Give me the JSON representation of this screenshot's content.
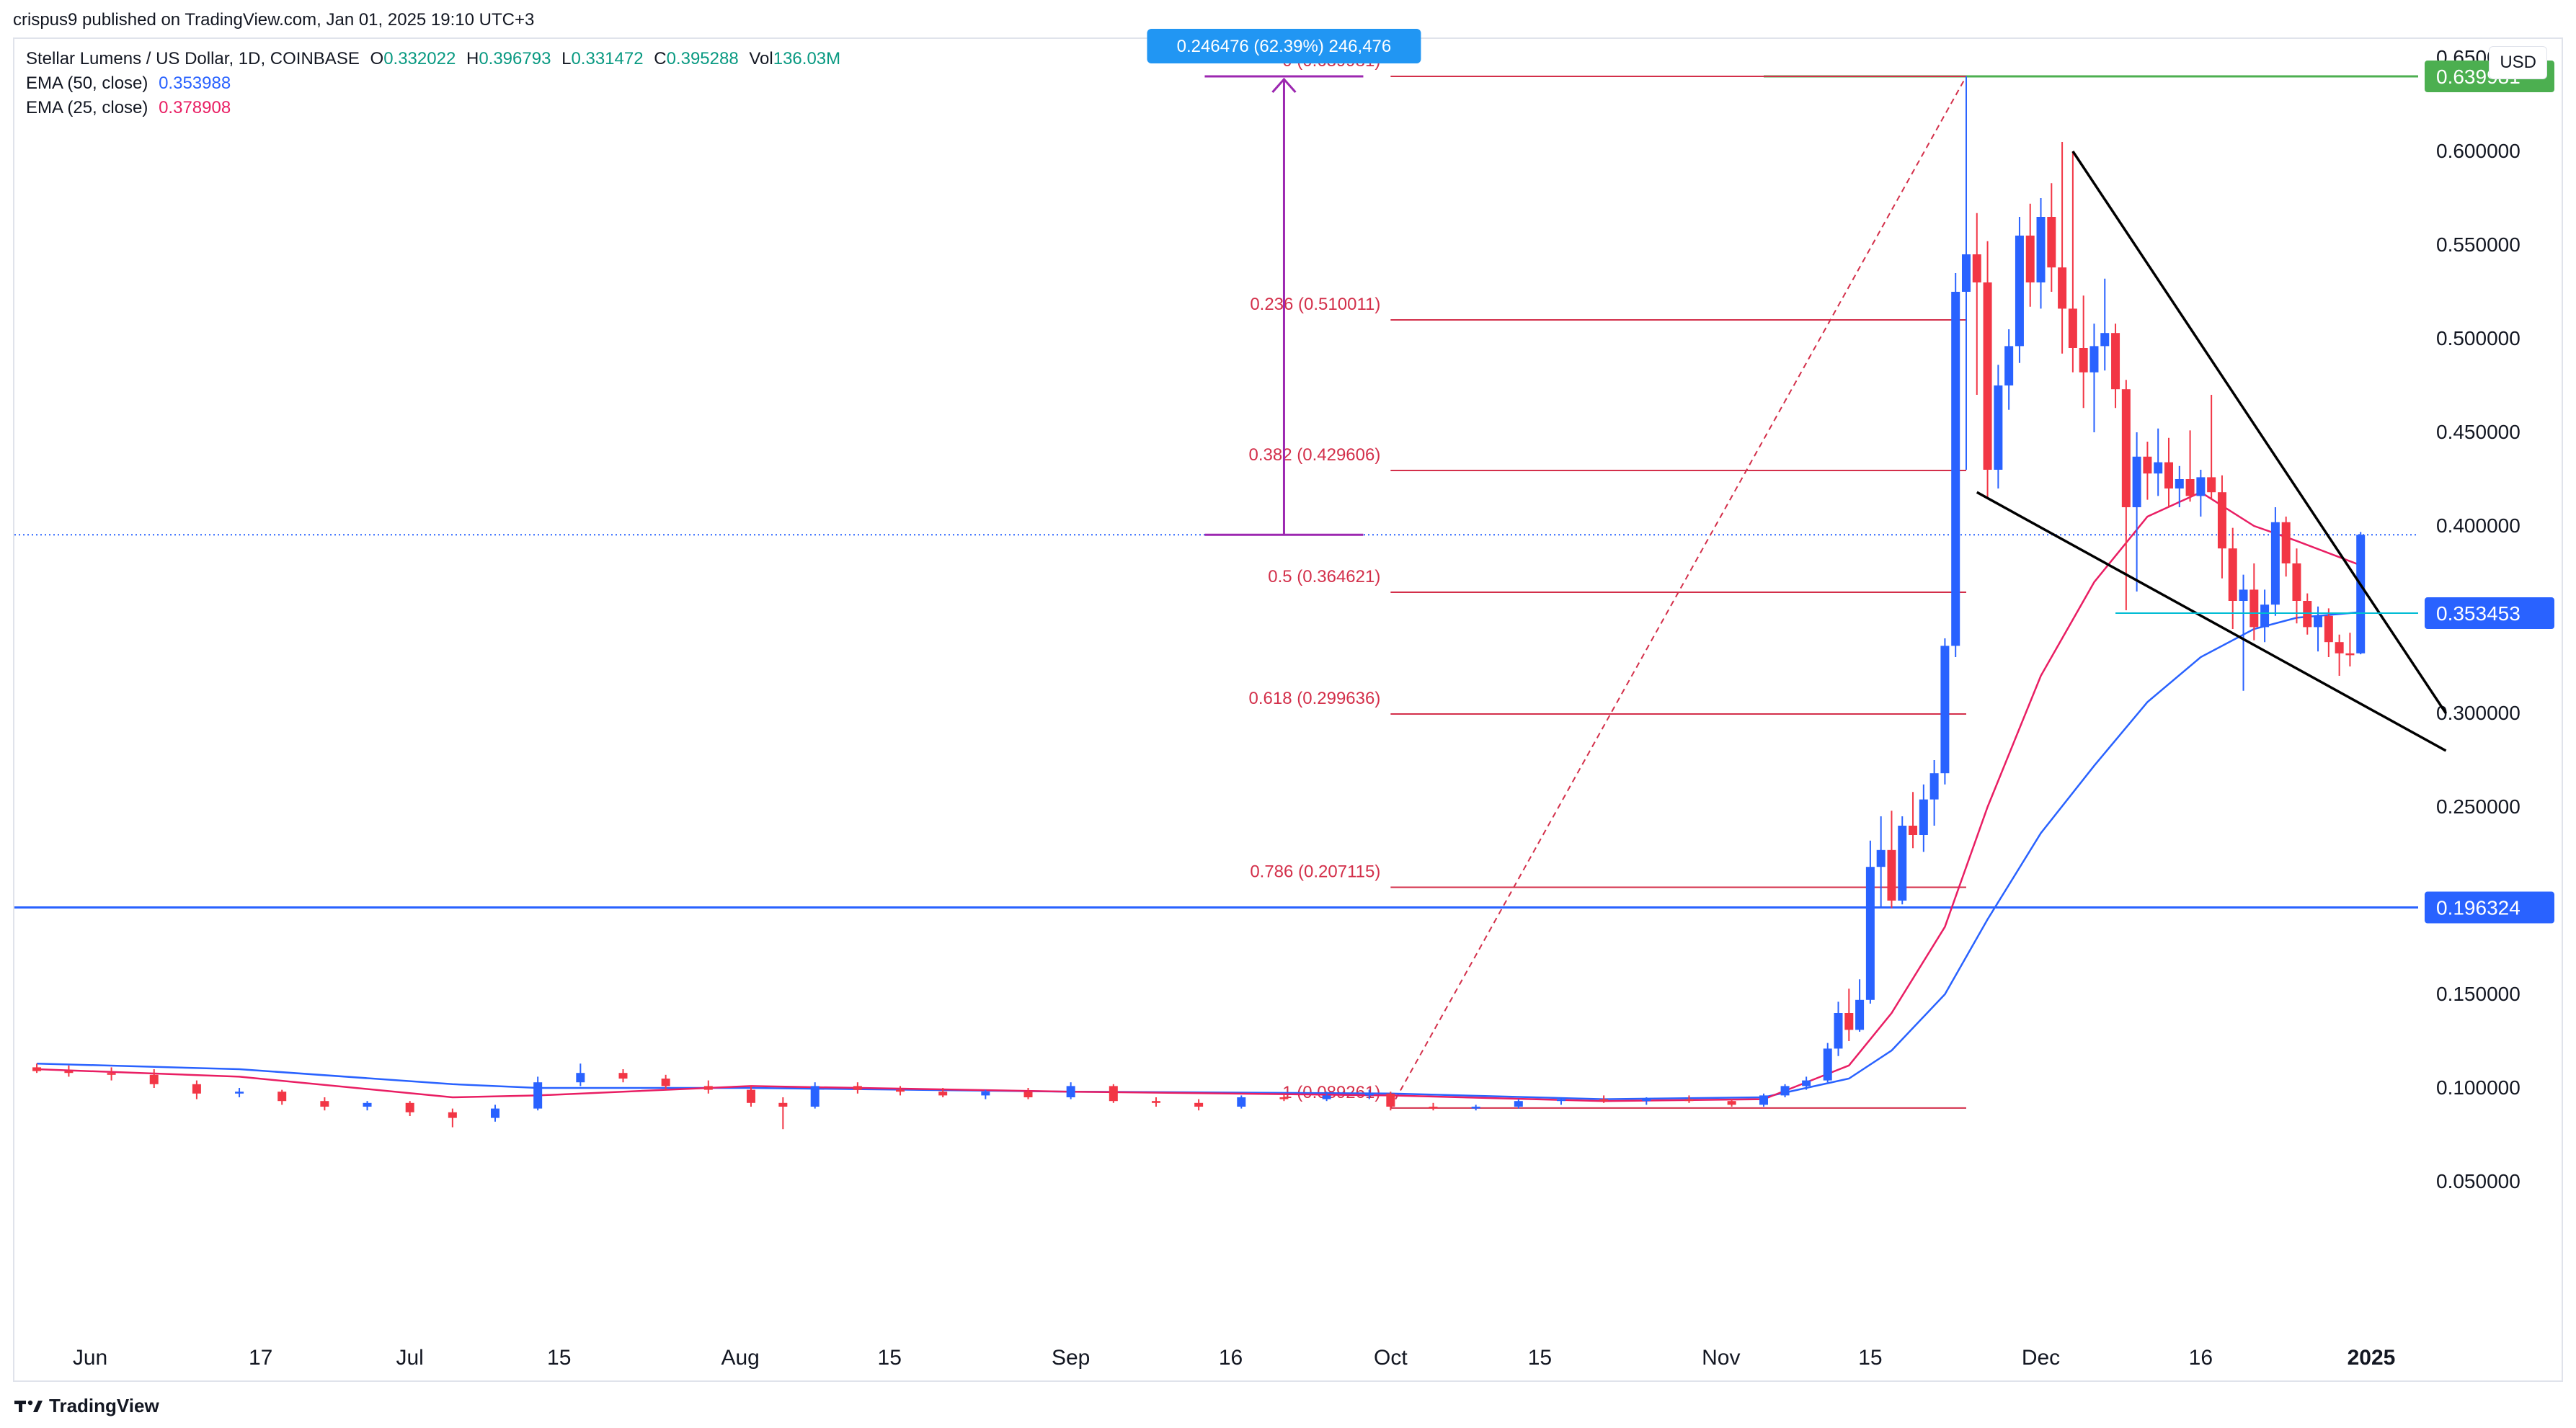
{
  "header": {
    "publisher": "crispus9 published on TradingView.com, Jan 01, 2025 19:10 UTC+3"
  },
  "symbol": {
    "name": "Stellar Lumens / US Dollar, 1D, COINBASE",
    "o_label": "O",
    "o": "0.332022",
    "h_label": "H",
    "h": "0.396793",
    "l_label": "L",
    "l": "0.331472",
    "c_label": "C",
    "c": "0.395288",
    "vol_label": "Vol",
    "vol": "136.03M"
  },
  "indicators": [
    {
      "label": "EMA (50, close)",
      "value": "0.353988",
      "color": "#2962ff"
    },
    {
      "label": "EMA (25, close)",
      "value": "0.378908",
      "color": "#e91e63"
    }
  ],
  "currency_button": "USD",
  "footer": {
    "brand": "TradingView"
  },
  "colors": {
    "up": "#2962ff",
    "down": "#f23645",
    "fib": "#d32f4a",
    "green": "#4caf50",
    "purple": "#9c27b0",
    "hline": "#2962ff",
    "wedge": "#000000"
  },
  "chart_data": {
    "type": "candlestick",
    "symbol": "XLMUSD",
    "interval": "1D",
    "ylim": [
      0.0,
      0.67
    ],
    "y_ticks": [
      "0.650000",
      "0.600000",
      "0.550000",
      "0.500000",
      "0.450000",
      "0.400000",
      "0.300000",
      "0.250000",
      "0.150000",
      "0.100000",
      "0.050000"
    ],
    "x_ticks": [
      "Jun",
      "17",
      "Jul",
      "15",
      "Aug",
      "15",
      "Sep",
      "16",
      "Oct",
      "15",
      "Nov",
      "15",
      "Dec",
      "16",
      "2025"
    ],
    "price_labels": [
      {
        "value": 0.639981,
        "text": "0.639981",
        "color": "#4caf50"
      },
      {
        "value": 0.353453,
        "text": "0.353453",
        "color": "#2962ff"
      },
      {
        "value": 0.196324,
        "text": "0.196324",
        "color": "#2962ff"
      }
    ],
    "fib_levels": [
      {
        "ratio": "1",
        "text": "1 (0.089261)",
        "value": 0.089261
      },
      {
        "ratio": "0.786",
        "text": "0.786 (0.207115)",
        "value": 0.207115
      },
      {
        "ratio": "0.618",
        "text": "0.618 (0.299636)",
        "value": 0.299636
      },
      {
        "ratio": "0.5",
        "text": "0.5 (0.364621)",
        "value": 0.364621
      },
      {
        "ratio": "0.382",
        "text": "0.382 (0.429606)",
        "value": 0.429606
      },
      {
        "ratio": "0.236",
        "text": "0.236 (0.510011)",
        "value": 0.510011
      },
      {
        "ratio": "0",
        "text": "0 (0.639981)",
        "value": 0.639981
      }
    ],
    "measure_label": "0.246476 (62.39%) 246,476",
    "current_price": 0.395288,
    "candles": [
      {
        "date": "2024-05-27",
        "o": 0.111,
        "h": 0.113,
        "l": 0.108,
        "c": 0.109
      },
      {
        "date": "2024-05-30",
        "o": 0.109,
        "h": 0.112,
        "l": 0.106,
        "c": 0.108
      },
      {
        "date": "2024-06-03",
        "o": 0.108,
        "h": 0.111,
        "l": 0.104,
        "c": 0.107
      },
      {
        "date": "2024-06-07",
        "o": 0.107,
        "h": 0.11,
        "l": 0.1,
        "c": 0.102
      },
      {
        "date": "2024-06-11",
        "o": 0.102,
        "h": 0.104,
        "l": 0.094,
        "c": 0.097
      },
      {
        "date": "2024-06-15",
        "o": 0.097,
        "h": 0.1,
        "l": 0.095,
        "c": 0.098
      },
      {
        "date": "2024-06-19",
        "o": 0.098,
        "h": 0.099,
        "l": 0.091,
        "c": 0.093
      },
      {
        "date": "2024-06-23",
        "o": 0.093,
        "h": 0.095,
        "l": 0.088,
        "c": 0.09
      },
      {
        "date": "2024-06-27",
        "o": 0.09,
        "h": 0.093,
        "l": 0.088,
        "c": 0.092
      },
      {
        "date": "2024-07-01",
        "o": 0.092,
        "h": 0.093,
        "l": 0.085,
        "c": 0.087
      },
      {
        "date": "2024-07-05",
        "o": 0.087,
        "h": 0.089,
        "l": 0.079,
        "c": 0.084
      },
      {
        "date": "2024-07-09",
        "o": 0.084,
        "h": 0.091,
        "l": 0.082,
        "c": 0.089
      },
      {
        "date": "2024-07-13",
        "o": 0.089,
        "h": 0.106,
        "l": 0.088,
        "c": 0.103
      },
      {
        "date": "2024-07-17",
        "o": 0.103,
        "h": 0.113,
        "l": 0.101,
        "c": 0.108
      },
      {
        "date": "2024-07-21",
        "o": 0.108,
        "h": 0.11,
        "l": 0.103,
        "c": 0.105
      },
      {
        "date": "2024-07-25",
        "o": 0.105,
        "h": 0.107,
        "l": 0.099,
        "c": 0.101
      },
      {
        "date": "2024-07-29",
        "o": 0.101,
        "h": 0.104,
        "l": 0.097,
        "c": 0.099
      },
      {
        "date": "2024-08-02",
        "o": 0.099,
        "h": 0.101,
        "l": 0.09,
        "c": 0.092
      },
      {
        "date": "2024-08-05",
        "o": 0.092,
        "h": 0.095,
        "l": 0.078,
        "c": 0.09
      },
      {
        "date": "2024-08-08",
        "o": 0.09,
        "h": 0.103,
        "l": 0.089,
        "c": 0.101
      },
      {
        "date": "2024-08-12",
        "o": 0.101,
        "h": 0.103,
        "l": 0.097,
        "c": 0.099
      },
      {
        "date": "2024-08-16",
        "o": 0.099,
        "h": 0.101,
        "l": 0.096,
        "c": 0.098
      },
      {
        "date": "2024-08-20",
        "o": 0.098,
        "h": 0.1,
        "l": 0.095,
        "c": 0.096
      },
      {
        "date": "2024-08-24",
        "o": 0.096,
        "h": 0.099,
        "l": 0.094,
        "c": 0.098
      },
      {
        "date": "2024-08-28",
        "o": 0.098,
        "h": 0.1,
        "l": 0.094,
        "c": 0.095
      },
      {
        "date": "2024-09-01",
        "o": 0.095,
        "h": 0.103,
        "l": 0.094,
        "c": 0.101
      },
      {
        "date": "2024-09-05",
        "o": 0.101,
        "h": 0.102,
        "l": 0.092,
        "c": 0.093
      },
      {
        "date": "2024-09-09",
        "o": 0.093,
        "h": 0.095,
        "l": 0.09,
        "c": 0.092
      },
      {
        "date": "2024-09-13",
        "o": 0.092,
        "h": 0.094,
        "l": 0.088,
        "c": 0.09
      },
      {
        "date": "2024-09-17",
        "o": 0.09,
        "h": 0.096,
        "l": 0.089,
        "c": 0.095
      },
      {
        "date": "2024-09-21",
        "o": 0.095,
        "h": 0.097,
        "l": 0.093,
        "c": 0.094
      },
      {
        "date": "2024-09-25",
        "o": 0.094,
        "h": 0.098,
        "l": 0.093,
        "c": 0.096
      },
      {
        "date": "2024-09-29",
        "o": 0.096,
        "h": 0.099,
        "l": 0.094,
        "c": 0.097
      },
      {
        "date": "2024-10-01",
        "o": 0.097,
        "h": 0.098,
        "l": 0.088,
        "c": 0.09
      },
      {
        "date": "2024-10-05",
        "o": 0.09,
        "h": 0.092,
        "l": 0.088,
        "c": 0.089
      },
      {
        "date": "2024-10-09",
        "o": 0.089,
        "h": 0.091,
        "l": 0.088,
        "c": 0.09
      },
      {
        "date": "2024-10-13",
        "o": 0.09,
        "h": 0.094,
        "l": 0.089,
        "c": 0.093
      },
      {
        "date": "2024-10-17",
        "o": 0.093,
        "h": 0.095,
        "l": 0.091,
        "c": 0.094
      },
      {
        "date": "2024-10-21",
        "o": 0.094,
        "h": 0.096,
        "l": 0.092,
        "c": 0.093
      },
      {
        "date": "2024-10-25",
        "o": 0.093,
        "h": 0.095,
        "l": 0.091,
        "c": 0.094
      },
      {
        "date": "2024-10-29",
        "o": 0.094,
        "h": 0.096,
        "l": 0.092,
        "c": 0.093
      },
      {
        "date": "2024-11-02",
        "o": 0.093,
        "h": 0.094,
        "l": 0.09,
        "c": 0.091
      },
      {
        "date": "2024-11-05",
        "o": 0.091,
        "h": 0.097,
        "l": 0.09,
        "c": 0.096
      },
      {
        "date": "2024-11-07",
        "o": 0.096,
        "h": 0.102,
        "l": 0.095,
        "c": 0.101
      },
      {
        "date": "2024-11-09",
        "o": 0.101,
        "h": 0.106,
        "l": 0.099,
        "c": 0.104
      },
      {
        "date": "2024-11-11",
        "o": 0.104,
        "h": 0.124,
        "l": 0.103,
        "c": 0.121
      },
      {
        "date": "2024-11-12",
        "o": 0.121,
        "h": 0.146,
        "l": 0.117,
        "c": 0.14
      },
      {
        "date": "2024-11-13",
        "o": 0.14,
        "h": 0.153,
        "l": 0.125,
        "c": 0.131
      },
      {
        "date": "2024-11-14",
        "o": 0.131,
        "h": 0.158,
        "l": 0.13,
        "c": 0.147
      },
      {
        "date": "2024-11-15",
        "o": 0.147,
        "h": 0.232,
        "l": 0.145,
        "c": 0.218
      },
      {
        "date": "2024-11-16",
        "o": 0.218,
        "h": 0.245,
        "l": 0.196,
        "c": 0.227
      },
      {
        "date": "2024-11-17",
        "o": 0.227,
        "h": 0.248,
        "l": 0.196,
        "c": 0.2
      },
      {
        "date": "2024-11-18",
        "o": 0.2,
        "h": 0.245,
        "l": 0.198,
        "c": 0.24
      },
      {
        "date": "2024-11-19",
        "o": 0.24,
        "h": 0.258,
        "l": 0.228,
        "c": 0.235
      },
      {
        "date": "2024-11-20",
        "o": 0.235,
        "h": 0.262,
        "l": 0.226,
        "c": 0.254
      },
      {
        "date": "2024-11-21",
        "o": 0.254,
        "h": 0.275,
        "l": 0.24,
        "c": 0.268
      },
      {
        "date": "2024-11-22",
        "o": 0.268,
        "h": 0.34,
        "l": 0.262,
        "c": 0.336
      },
      {
        "date": "2024-11-23",
        "o": 0.336,
        "h": 0.535,
        "l": 0.33,
        "c": 0.525
      },
      {
        "date": "2024-11-24",
        "o": 0.525,
        "h": 0.64,
        "l": 0.43,
        "c": 0.545
      },
      {
        "date": "2024-11-25",
        "o": 0.545,
        "h": 0.567,
        "l": 0.47,
        "c": 0.53
      },
      {
        "date": "2024-11-26",
        "o": 0.53,
        "h": 0.552,
        "l": 0.415,
        "c": 0.43
      },
      {
        "date": "2024-11-27",
        "o": 0.43,
        "h": 0.486,
        "l": 0.42,
        "c": 0.475
      },
      {
        "date": "2024-11-28",
        "o": 0.475,
        "h": 0.505,
        "l": 0.462,
        "c": 0.496
      },
      {
        "date": "2024-11-29",
        "o": 0.496,
        "h": 0.565,
        "l": 0.487,
        "c": 0.555
      },
      {
        "date": "2024-11-30",
        "o": 0.555,
        "h": 0.572,
        "l": 0.517,
        "c": 0.53
      },
      {
        "date": "2024-12-01",
        "o": 0.53,
        "h": 0.575,
        "l": 0.516,
        "c": 0.565
      },
      {
        "date": "2024-12-02",
        "o": 0.565,
        "h": 0.583,
        "l": 0.525,
        "c": 0.538
      },
      {
        "date": "2024-12-03",
        "o": 0.538,
        "h": 0.605,
        "l": 0.492,
        "c": 0.516
      },
      {
        "date": "2024-12-04",
        "o": 0.516,
        "h": 0.6,
        "l": 0.482,
        "c": 0.495
      },
      {
        "date": "2024-12-05",
        "o": 0.495,
        "h": 0.523,
        "l": 0.463,
        "c": 0.482
      },
      {
        "date": "2024-12-06",
        "o": 0.482,
        "h": 0.508,
        "l": 0.45,
        "c": 0.496
      },
      {
        "date": "2024-12-07",
        "o": 0.496,
        "h": 0.532,
        "l": 0.483,
        "c": 0.503
      },
      {
        "date": "2024-12-08",
        "o": 0.503,
        "h": 0.508,
        "l": 0.463,
        "c": 0.473
      },
      {
        "date": "2024-12-09",
        "o": 0.473,
        "h": 0.478,
        "l": 0.355,
        "c": 0.41
      },
      {
        "date": "2024-12-10",
        "o": 0.41,
        "h": 0.45,
        "l": 0.365,
        "c": 0.437
      },
      {
        "date": "2024-12-11",
        "o": 0.437,
        "h": 0.445,
        "l": 0.414,
        "c": 0.428
      },
      {
        "date": "2024-12-12",
        "o": 0.428,
        "h": 0.452,
        "l": 0.416,
        "c": 0.434
      },
      {
        "date": "2024-12-13",
        "o": 0.434,
        "h": 0.447,
        "l": 0.41,
        "c": 0.42
      },
      {
        "date": "2024-12-14",
        "o": 0.42,
        "h": 0.432,
        "l": 0.41,
        "c": 0.425
      },
      {
        "date": "2024-12-15",
        "o": 0.425,
        "h": 0.451,
        "l": 0.413,
        "c": 0.416
      },
      {
        "date": "2024-12-16",
        "o": 0.416,
        "h": 0.43,
        "l": 0.405,
        "c": 0.426
      },
      {
        "date": "2024-12-17",
        "o": 0.426,
        "h": 0.47,
        "l": 0.414,
        "c": 0.418
      },
      {
        "date": "2024-12-18",
        "o": 0.418,
        "h": 0.427,
        "l": 0.372,
        "c": 0.388
      },
      {
        "date": "2024-12-19",
        "o": 0.388,
        "h": 0.399,
        "l": 0.345,
        "c": 0.36
      },
      {
        "date": "2024-12-20",
        "o": 0.36,
        "h": 0.374,
        "l": 0.312,
        "c": 0.366
      },
      {
        "date": "2024-12-21",
        "o": 0.366,
        "h": 0.38,
        "l": 0.339,
        "c": 0.346
      },
      {
        "date": "2024-12-22",
        "o": 0.346,
        "h": 0.366,
        "l": 0.338,
        "c": 0.358
      },
      {
        "date": "2024-12-23",
        "o": 0.358,
        "h": 0.41,
        "l": 0.352,
        "c": 0.402
      },
      {
        "date": "2024-12-24",
        "o": 0.402,
        "h": 0.405,
        "l": 0.373,
        "c": 0.38
      },
      {
        "date": "2024-12-25",
        "o": 0.38,
        "h": 0.388,
        "l": 0.348,
        "c": 0.36
      },
      {
        "date": "2024-12-26",
        "o": 0.36,
        "h": 0.364,
        "l": 0.342,
        "c": 0.346
      },
      {
        "date": "2024-12-27",
        "o": 0.346,
        "h": 0.357,
        "l": 0.333,
        "c": 0.352
      },
      {
        "date": "2024-12-28",
        "o": 0.352,
        "h": 0.356,
        "l": 0.33,
        "c": 0.338
      },
      {
        "date": "2024-12-29",
        "o": 0.338,
        "h": 0.342,
        "l": 0.32,
        "c": 0.332
      },
      {
        "date": "2024-12-30",
        "o": 0.332,
        "h": 0.343,
        "l": 0.325,
        "c": 0.331
      },
      {
        "date": "2024-12-31",
        "o": 0.332,
        "h": 0.3968,
        "l": 0.3315,
        "c": 0.3953
      }
    ],
    "ema50": [
      {
        "date": "2024-05-27",
        "v": 0.113
      },
      {
        "date": "2024-06-15",
        "v": 0.11
      },
      {
        "date": "2024-07-05",
        "v": 0.102
      },
      {
        "date": "2024-07-13",
        "v": 0.1
      },
      {
        "date": "2024-08-02",
        "v": 0.1
      },
      {
        "date": "2024-09-01",
        "v": 0.098
      },
      {
        "date": "2024-10-01",
        "v": 0.097
      },
      {
        "date": "2024-10-21",
        "v": 0.094
      },
      {
        "date": "2024-11-05",
        "v": 0.095
      },
      {
        "date": "2024-11-13",
        "v": 0.105
      },
      {
        "date": "2024-11-17",
        "v": 0.12
      },
      {
        "date": "2024-11-22",
        "v": 0.15
      },
      {
        "date": "2024-11-26",
        "v": 0.19
      },
      {
        "date": "2024-12-01",
        "v": 0.236
      },
      {
        "date": "2024-12-06",
        "v": 0.272
      },
      {
        "date": "2024-12-11",
        "v": 0.306
      },
      {
        "date": "2024-12-16",
        "v": 0.33
      },
      {
        "date": "2024-12-21",
        "v": 0.345
      },
      {
        "date": "2024-12-25",
        "v": 0.351
      },
      {
        "date": "2024-12-31",
        "v": 0.354
      }
    ],
    "ema25": [
      {
        "date": "2024-05-27",
        "v": 0.11
      },
      {
        "date": "2024-06-15",
        "v": 0.106
      },
      {
        "date": "2024-07-05",
        "v": 0.095
      },
      {
        "date": "2024-07-13",
        "v": 0.096
      },
      {
        "date": "2024-08-02",
        "v": 0.101
      },
      {
        "date": "2024-09-01",
        "v": 0.098
      },
      {
        "date": "2024-10-01",
        "v": 0.096
      },
      {
        "date": "2024-10-21",
        "v": 0.093
      },
      {
        "date": "2024-11-05",
        "v": 0.094
      },
      {
        "date": "2024-11-13",
        "v": 0.112
      },
      {
        "date": "2024-11-17",
        "v": 0.14
      },
      {
        "date": "2024-11-22",
        "v": 0.186
      },
      {
        "date": "2024-11-26",
        "v": 0.25
      },
      {
        "date": "2024-12-01",
        "v": 0.32
      },
      {
        "date": "2024-12-06",
        "v": 0.37
      },
      {
        "date": "2024-12-11",
        "v": 0.405
      },
      {
        "date": "2024-12-16",
        "v": 0.418
      },
      {
        "date": "2024-12-21",
        "v": 0.4
      },
      {
        "date": "2024-12-25",
        "v": 0.392
      },
      {
        "date": "2024-12-31",
        "v": 0.379
      }
    ]
  }
}
